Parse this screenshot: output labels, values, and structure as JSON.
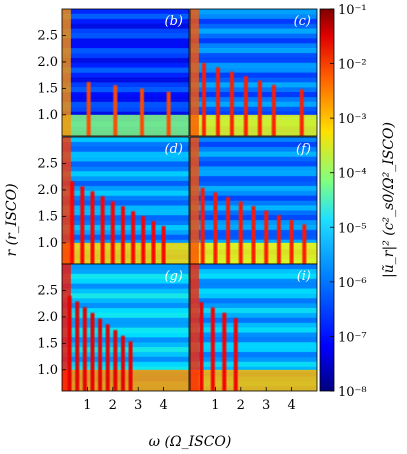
{
  "chart_data": {
    "type": "heatmap",
    "title": "",
    "xlabel": "ω (Ω_ISCO)",
    "ylabel": "r (r_ISCO)",
    "colorbar_label": "|ũ_r|² (c²_s0/Ω²_ISCO)",
    "color_scale": "log",
    "colormap": "jet",
    "colorbar_ticks": [
      "10⁻¹",
      "10⁻²",
      "10⁻³",
      "10⁻⁴",
      "10⁻⁵",
      "10⁻⁶",
      "10⁻⁷",
      "10⁻⁸"
    ],
    "colorbar_range": [
      1e-08,
      0.1
    ],
    "xlim": [
      0,
      5
    ],
    "ylim": [
      0.6,
      3.0
    ],
    "x_ticks": [
      "1",
      "2",
      "3",
      "4"
    ],
    "y_ticks": [
      "1.0",
      "1.5",
      "2.0",
      "2.5"
    ],
    "panels": [
      {
        "label": "(b)",
        "peaks": [
          1.05,
          2.1,
          3.15,
          4.2
        ],
        "activity": 0.15,
        "description_level": "weak"
      },
      {
        "label": "(c)",
        "peaks": [
          0.55,
          1.1,
          1.65,
          2.2,
          2.75,
          3.3,
          4.4
        ],
        "activity": 0.45
      },
      {
        "label": "(d)",
        "peaks": [
          0.4,
          0.8,
          1.2,
          1.6,
          2.0,
          2.4,
          2.8,
          3.2,
          3.6,
          4.0
        ],
        "activity": 0.6
      },
      {
        "label": "(f)",
        "peaks": [
          0.5,
          1.0,
          1.5,
          2.0,
          2.5,
          3.0,
          3.5,
          4.0,
          4.5
        ],
        "activity": 0.5
      },
      {
        "label": "(g)",
        "peaks": [
          0.3,
          0.6,
          0.9,
          1.2,
          1.5,
          1.8,
          2.1,
          2.4,
          2.7
        ],
        "activity": 0.8
      },
      {
        "label": "(i)",
        "peaks": [
          0.45,
          0.9,
          1.35,
          1.8
        ],
        "activity": 0.7
      }
    ]
  }
}
